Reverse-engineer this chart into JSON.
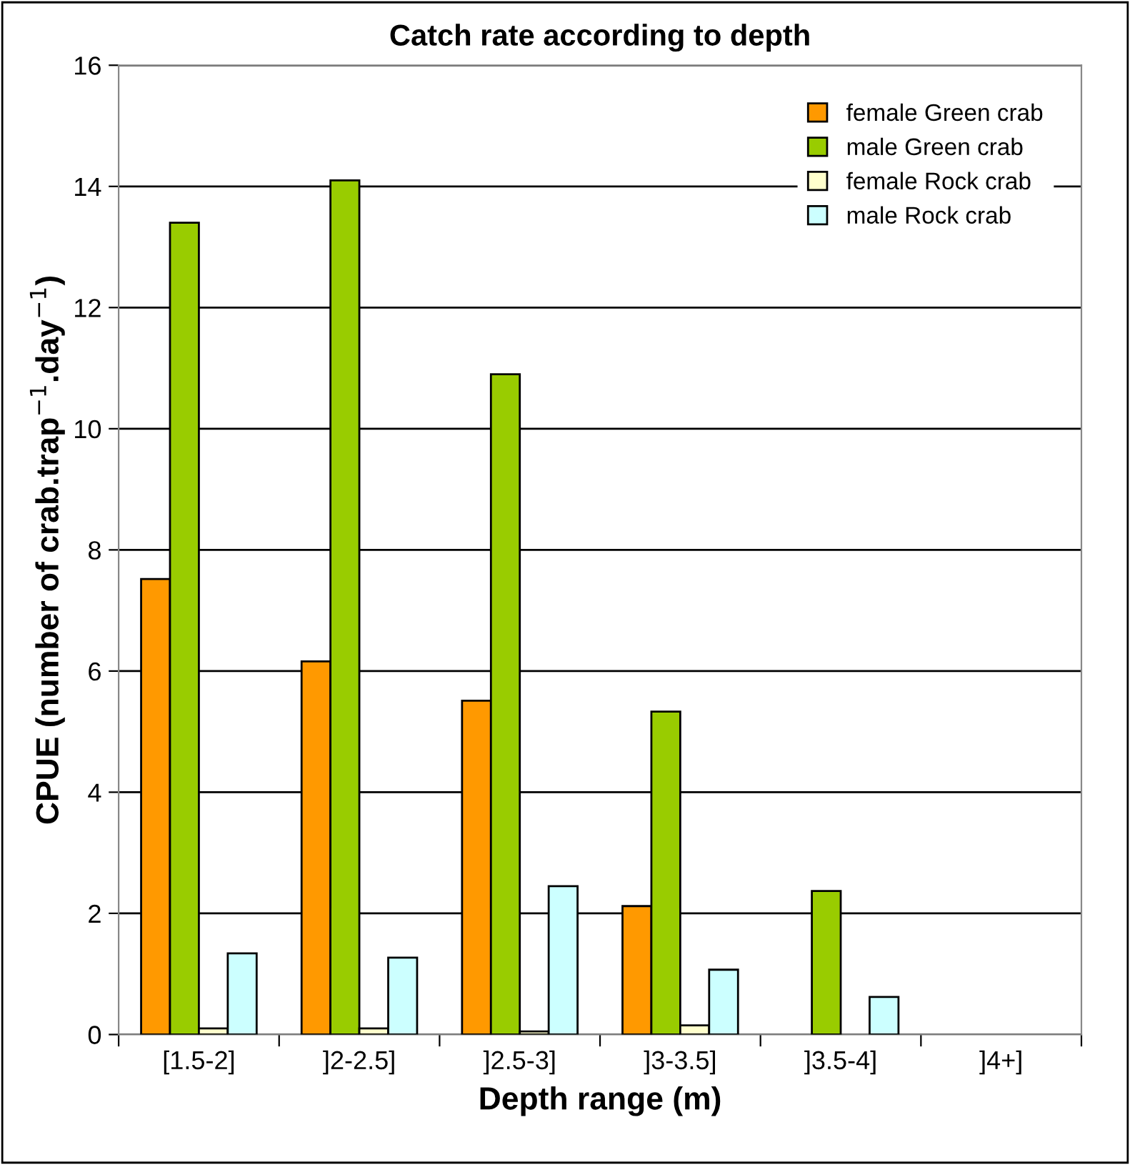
{
  "chart_data": {
    "type": "bar",
    "title": "Catch rate according to depth",
    "xlabel": "Depth range (m)",
    "ylabel": "CPUE (number of crab.trap$^{−1}$.day$^{−1}$)",
    "categories": [
      "[1.5-2]",
      "]2-2.5]",
      "]2.5-3]",
      "]3-3.5]",
      "]3.5-4]",
      "]4+]"
    ],
    "series": [
      {
        "name": "female Green crab",
        "color": "#ff9900",
        "values": [
          7.52,
          6.16,
          5.51,
          2.12,
          null,
          null
        ]
      },
      {
        "name": "male Green crab",
        "color": "#99cc00",
        "values": [
          13.4,
          14.1,
          10.9,
          5.33,
          2.37,
          null
        ]
      },
      {
        "name": "female Rock crab",
        "color": "#ffffcc",
        "values": [
          0.1,
          0.1,
          0.05,
          0.15,
          null,
          null
        ]
      },
      {
        "name": "male Rock crab",
        "color": "#ccffff",
        "values": [
          1.34,
          1.27,
          2.45,
          1.07,
          0.62,
          null
        ]
      }
    ],
    "ylim": [
      0,
      16
    ],
    "yticks": [
      0,
      2,
      4,
      6,
      8,
      10,
      12,
      14,
      16
    ],
    "grid": "y",
    "legend": "top right"
  }
}
